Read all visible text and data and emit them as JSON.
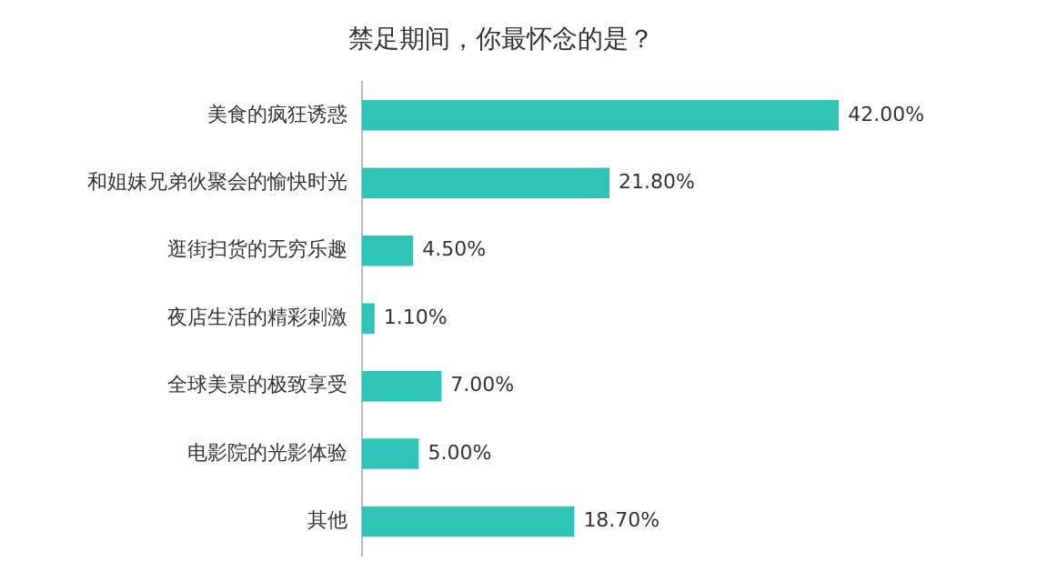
{
  "chart_data": {
    "type": "bar",
    "orientation": "horizontal",
    "title": "禁足期间，你最怀念的是？",
    "categories": [
      "美食的疯狂诱惑",
      "和姐妹兄弟伙聚会的愉快时光",
      "逛街扫货的无穷乐趣",
      "夜店生活的精彩刺激",
      "全球美景的极致享受",
      "电影院的光影体验",
      "其他"
    ],
    "values": [
      42.0,
      21.8,
      4.5,
      1.1,
      7.0,
      5.0,
      18.7
    ],
    "value_labels": [
      "42.00%",
      "21.80%",
      "4.50%",
      "1.10%",
      "7.00%",
      "5.00%",
      "18.70%"
    ],
    "color": "#2ec4b6",
    "legend": false
  }
}
